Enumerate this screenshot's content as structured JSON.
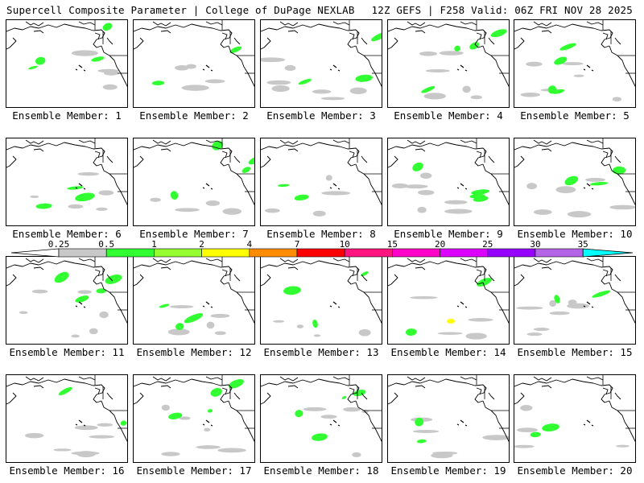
{
  "header": {
    "title": "Supercell Composite Parameter | College of DuPage NEXLAB",
    "run_info": "12Z GEFS | F258 Valid: 06Z FRI NOV 28 2025"
  },
  "legend": {
    "colors": {
      "gray": "#c8c8c8",
      "green": "#32ff32",
      "lime": "#96ff32",
      "yellow": "#ffff00",
      "orange": "#ff8c00",
      "red": "#ff0000",
      "crimson": "#ff1480",
      "magenta": "#ff00c8",
      "violet": "#dc00ff",
      "purple": "#9600ff",
      "lavender": "#b464e6",
      "cyan": "#00ffff"
    },
    "labels": [
      "0.25",
      "0.5",
      "1",
      "2",
      "4",
      "7",
      "10",
      "15",
      "20",
      "25",
      "30",
      "35"
    ]
  },
  "panels": [
    {
      "label": "Ensemble Member: 1"
    },
    {
      "label": "Ensemble Member: 2"
    },
    {
      "label": "Ensemble Member: 3"
    },
    {
      "label": "Ensemble Member: 4"
    },
    {
      "label": "Ensemble Member: 5"
    },
    {
      "label": "Ensemble Member: 6"
    },
    {
      "label": "Ensemble Member: 7"
    },
    {
      "label": "Ensemble Member: 8"
    },
    {
      "label": "Ensemble Member: 9"
    },
    {
      "label": "Ensemble Member: 10"
    },
    {
      "label": "Ensemble Member: 11"
    },
    {
      "label": "Ensemble Member: 12"
    },
    {
      "label": "Ensemble Member: 13"
    },
    {
      "label": "Ensemble Member: 14"
    },
    {
      "label": "Ensemble Member: 15"
    },
    {
      "label": "Ensemble Member: 16"
    },
    {
      "label": "Ensemble Member: 17"
    },
    {
      "label": "Ensemble Member: 18"
    },
    {
      "label": "Ensemble Member: 19"
    },
    {
      "label": "Ensemble Member: 20"
    }
  ]
}
